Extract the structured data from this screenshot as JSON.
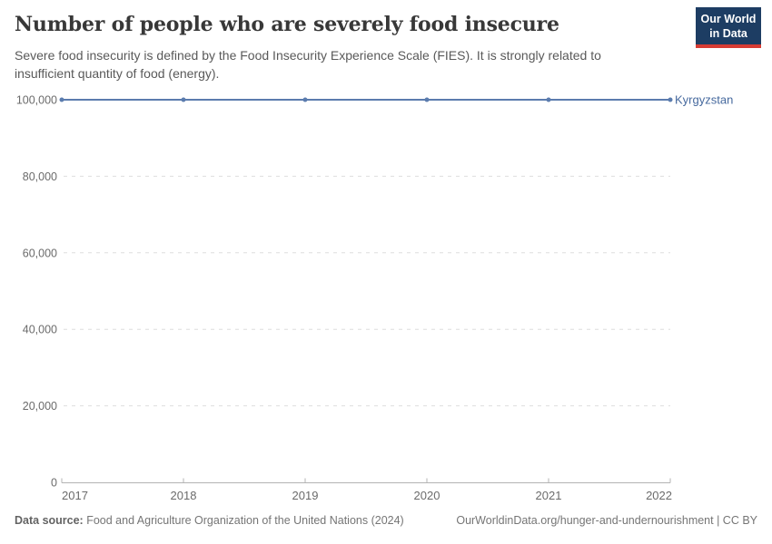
{
  "header": {
    "title": "Number of people who are severely food insecure",
    "subtitle": "Severe food insecurity is defined by the Food Insecurity Experience Scale (FIES). It is strongly related to insufficient quantity of food (energy).",
    "logo": {
      "line1": "Our World",
      "line2": "in Data"
    }
  },
  "chart_data": {
    "type": "line",
    "title": "Number of people who are severely food insecure",
    "x": [
      2017,
      2018,
      2019,
      2020,
      2021,
      2022
    ],
    "xtick_labels": [
      "2017",
      "2018",
      "2019",
      "2020",
      "2021",
      "2022"
    ],
    "series": [
      {
        "name": "Kyrgyzstan",
        "values": [
          100000,
          100000,
          100000,
          100000,
          100000,
          100000
        ],
        "color": "#5b7cae",
        "label_color": "#46699e"
      }
    ],
    "ylim": [
      0,
      100000
    ],
    "yticks": [
      0,
      20000,
      40000,
      60000,
      80000,
      100000
    ],
    "ytick_labels": [
      "0",
      "20,000",
      "40,000",
      "60,000",
      "80,000",
      "100,000"
    ],
    "grid": "horizontal-dashed",
    "legend_position": "right-of-line",
    "colors": {
      "gridline": "#dedede",
      "axis": "#b3b3b3",
      "tick_label": "#6b6b6b"
    }
  },
  "footer": {
    "datasource_label": "Data source:",
    "datasource_value": " Food and Agriculture Organization of the United Nations (2024)",
    "link": "OurWorldinData.org/hunger-and-undernourishment | CC BY"
  }
}
